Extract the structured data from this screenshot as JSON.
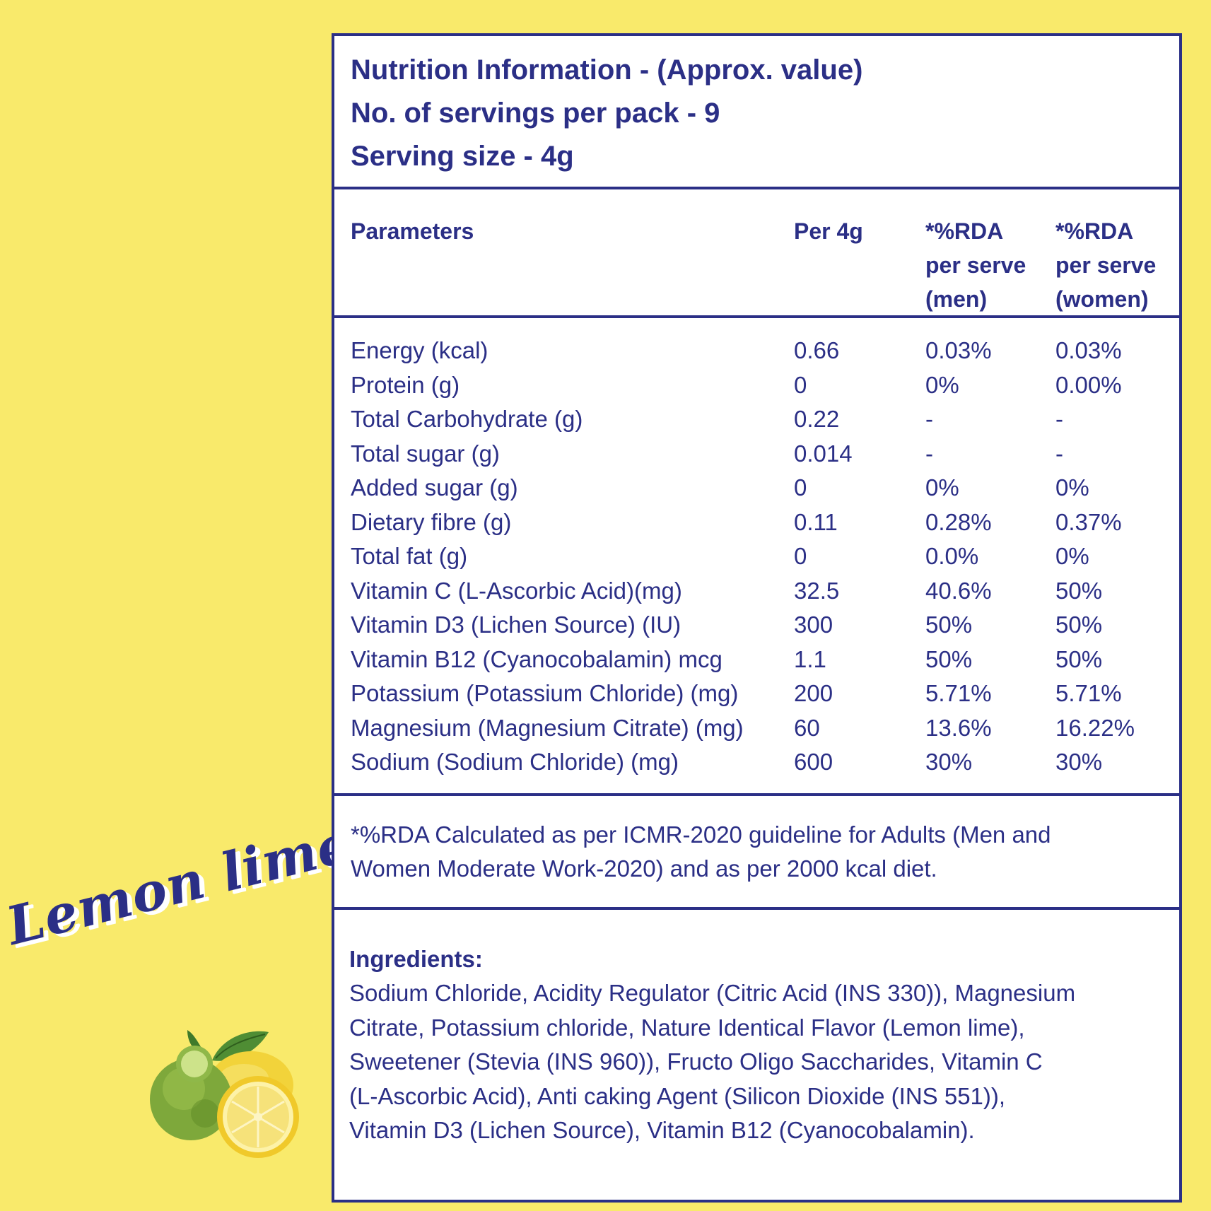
{
  "title_lines": [
    "Nutrition Information - (Approx. value)",
    "No. of servings per pack - 9",
    "Serving size - 4g"
  ],
  "headers": {
    "parameters": "Parameters",
    "per": "Per 4g",
    "rda_men": [
      "*%RDA",
      "per serve",
      "(men)"
    ],
    "rda_women": [
      "*%RDA",
      "per serve",
      "(women)"
    ]
  },
  "rows": [
    {
      "param": "Energy (kcal)",
      "per": "0.66",
      "men": "0.03%",
      "women": "0.03%"
    },
    {
      "param": "Protein (g)",
      "per": "0",
      "men": "0%",
      "women": "0.00%"
    },
    {
      "param": "Total Carbohydrate (g)",
      "per": "0.22",
      "men": "-",
      "women": "-"
    },
    {
      "param": "Total sugar (g)",
      "per": "0.014",
      "men": "-",
      "women": "-"
    },
    {
      "param": "Added sugar (g)",
      "per": "0",
      "men": "0%",
      "women": "0%"
    },
    {
      "param": "Dietary fibre (g)",
      "per": "0.11",
      "men": "0.28%",
      "women": "0.37%"
    },
    {
      "param": "Total fat (g)",
      "per": "0",
      "men": "0.0%",
      "women": "0%"
    },
    {
      "param": "Vitamin C (L-Ascorbic Acid)(mg)",
      "per": "32.5",
      "men": "40.6%",
      "women": "50%"
    },
    {
      "param": "Vitamin D3 (Lichen Source) (IU)",
      "per": "300",
      "men": "50%",
      "women": "50%"
    },
    {
      "param": "Vitamin B12 (Cyanocobalamin) mcg",
      "per": "1.1",
      "men": "50%",
      "women": "50%"
    },
    {
      "param": "Potassium (Potassium Chloride) (mg)",
      "per": "200",
      "men": "5.71%",
      "women": "5.71%"
    },
    {
      "param": "Magnesium (Magnesium Citrate) (mg)",
      "per": "60",
      "men": "13.6%",
      "women": "16.22%"
    },
    {
      "param": "Sodium (Sodium Chloride) (mg)",
      "per": "600",
      "men": "30%",
      "women": "30%"
    }
  ],
  "note_lines": [
    "*%RDA Calculated as per ICMR-2020 guideline for Adults (Men and",
    "Women Moderate Work-2020) and as per 2000 kcal diet."
  ],
  "ingredients_title": "Ingredients:",
  "ingredients_lines": [
    "Sodium Chloride, Acidity Regulator (Citric Acid (INS 330)), Magnesium",
    "Citrate, Potassium chloride, Nature Identical Flavor (Lemon lime),",
    "Sweetener (Stevia (INS 960)), Fructo Oligo Saccharides, Vitamin C",
    "(L-Ascorbic Acid), Anti caking Agent (Silicon Dioxide (INS 551)),",
    "Vitamin D3 (Lichen Source), Vitamin B12 (Cyanocobalamin)."
  ],
  "brand_name": "Lemon lime",
  "colors": {
    "background": "#f9ea6b",
    "ink": "#2b2f86",
    "panel": "#ffffff"
  },
  "icons": [
    "lemon-lime-fruit-icon"
  ]
}
